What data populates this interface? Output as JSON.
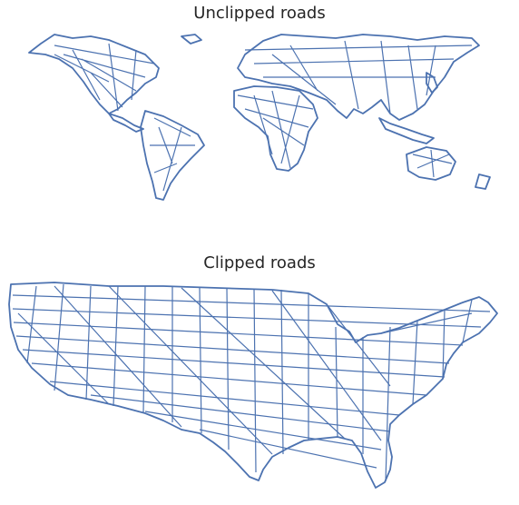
{
  "panels": {
    "top": {
      "title": "Unclipped roads"
    },
    "bottom": {
      "title": "Clipped roads"
    }
  },
  "colors": {
    "road_line": "#4c72b0",
    "background": "#ffffff",
    "title_text": "#262626"
  }
}
